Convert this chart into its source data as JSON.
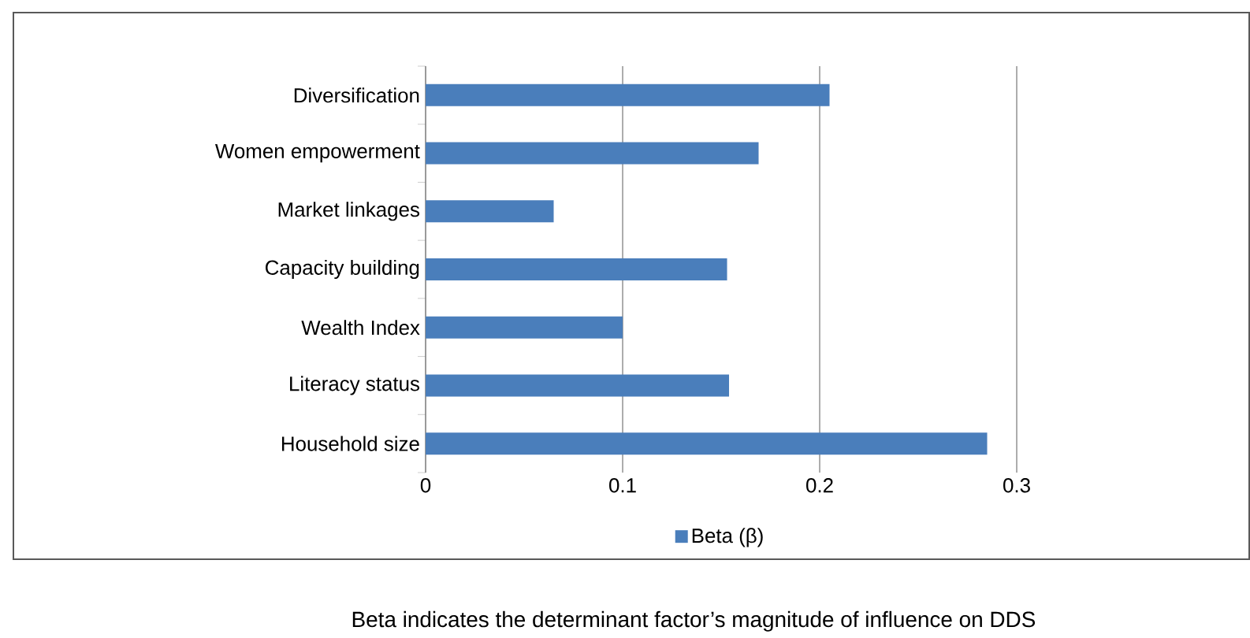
{
  "chart_data": {
    "type": "bar",
    "orientation": "horizontal",
    "categories": [
      "Diversification",
      "Women empowerment",
      "Market linkages",
      "Capacity building",
      "Wealth Index",
      "Literacy status",
      "Household size"
    ],
    "series": [
      {
        "name": "Beta (β)",
        "color": "#4a7ebb",
        "values": [
          0.205,
          0.169,
          0.065,
          0.153,
          0.1,
          0.154,
          0.285
        ]
      }
    ],
    "xlim": [
      0,
      0.3
    ],
    "xticks": [
      0,
      0.1,
      0.2,
      0.3
    ],
    "grid": "x",
    "legend": "bottom",
    "annotations": [
      "Beta indicates the determinant factor’s magnitude of influence on DDS"
    ]
  }
}
